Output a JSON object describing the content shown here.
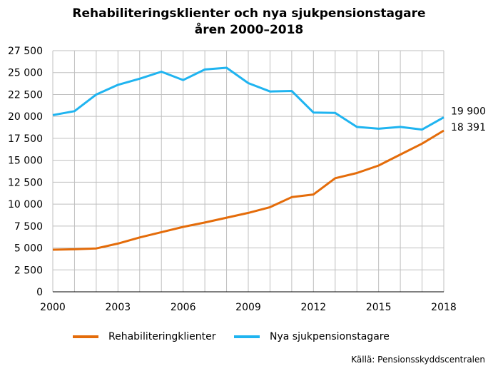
{
  "title": {
    "line1": "Rehabiliteringsklienter och nya sjukpensionstagare",
    "line2": "åren 2000–2018"
  },
  "source": "Källä: Pensionsskyddscentralen",
  "colors": {
    "rehab": "#e46c0a",
    "sjukpension": "#1fb4f0",
    "grid": "#bfbfbf",
    "axis": "#000000"
  },
  "chart_data": {
    "type": "line",
    "title": "Rehabiliteringsklienter och nya sjukpensionstagare åren 2000–2018",
    "x": [
      2000,
      2001,
      2002,
      2003,
      2004,
      2005,
      2006,
      2007,
      2008,
      2009,
      2010,
      2011,
      2012,
      2013,
      2014,
      2015,
      2016,
      2017,
      2018
    ],
    "xticks": [
      "2000",
      "2003",
      "2006",
      "2009",
      "2012",
      "2015",
      "2018"
    ],
    "xlim": [
      2000,
      2018
    ],
    "ylim": [
      0,
      27500
    ],
    "yticks": [
      "0",
      "2 500",
      "5 000",
      "7 500",
      "10 000",
      "12 500",
      "15 000",
      "17 500",
      "20 000",
      "22 500",
      "25 000",
      "27 500"
    ],
    "grid": true,
    "legend_position": "bottom",
    "series": [
      {
        "name": "Rehabiliteringklienter",
        "color": "#e46c0a",
        "values": [
          4800,
          4850,
          4950,
          5500,
          6200,
          6800,
          7400,
          7900,
          8450,
          9000,
          9650,
          10800,
          11100,
          12950,
          13550,
          14400,
          15650,
          16900,
          18391
        ],
        "end_label": "18 391"
      },
      {
        "name": "Nya sjukpensionstagare",
        "color": "#1fb4f0",
        "values": [
          20150,
          20600,
          22500,
          23600,
          24300,
          25100,
          24150,
          25350,
          25550,
          23800,
          22850,
          22900,
          20450,
          20400,
          18800,
          18600,
          18800,
          18500,
          19900
        ],
        "end_label": "19 900"
      }
    ]
  }
}
